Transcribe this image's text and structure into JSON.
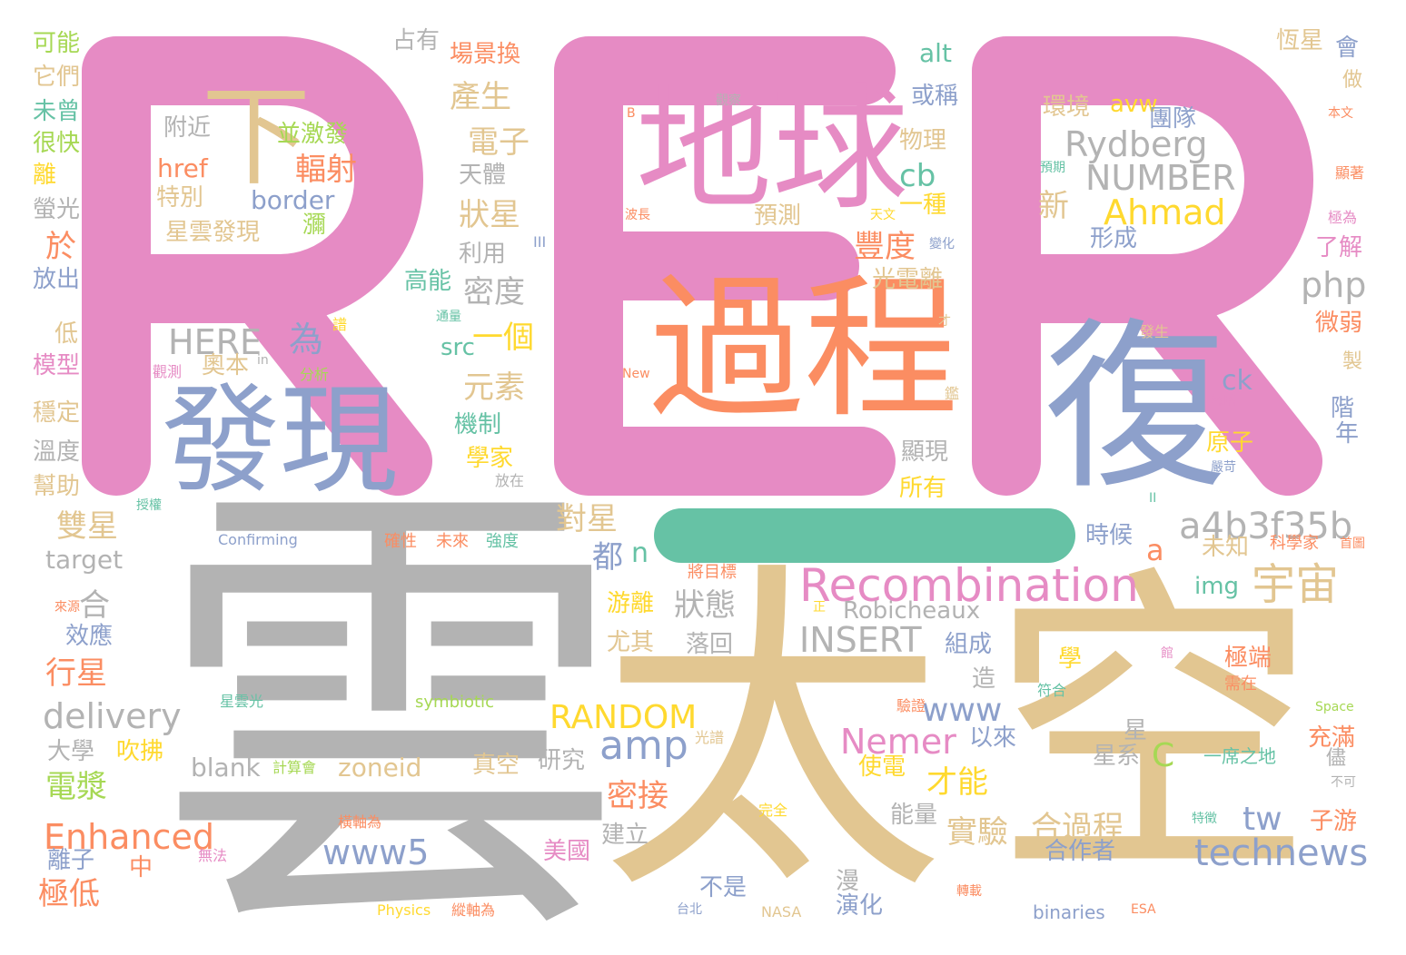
{
  "colors": {
    "pink": "#e68bc4",
    "tan": "#e2c691",
    "gray": "#b3b3b3",
    "orange": "#fb8d62",
    "blue": "#8da0cb",
    "green": "#66c2a5",
    "lime": "#a6d854",
    "yellow": "#ffd92f"
  },
  "big_glyphs": [
    {
      "text": "R",
      "color": "#e68bc4"
    },
    {
      "text": "E",
      "color": "#e68bc4"
    },
    {
      "text": "R",
      "color": "#e68bc4"
    },
    {
      "text": "—",
      "color": "#66c2a5"
    }
  ],
  "words": [
    {
      "t": "雲",
      "c": "#b3b3b3"
    },
    {
      "t": "太",
      "c": "#e2c691"
    },
    {
      "t": "空",
      "c": "#e2c691"
    },
    {
      "t": "過程",
      "c": "#fb8d62"
    },
    {
      "t": "地球",
      "c": "#e68bc4"
    },
    {
      "t": "復",
      "c": "#8da0cb"
    },
    {
      "t": "發現",
      "c": "#8da0cb"
    },
    {
      "t": "下",
      "c": "#e2c691"
    },
    {
      "t": "Recombination",
      "c": "#e68bc4"
    },
    {
      "t": "宇宙",
      "c": "#e2c691"
    },
    {
      "t": "a4b3f35b",
      "c": "#b3b3b3"
    },
    {
      "t": "Ahmad",
      "c": "#ffd92f"
    },
    {
      "t": "Rydberg",
      "c": "#b3b3b3"
    },
    {
      "t": "NUMBER",
      "c": "#b3b3b3"
    },
    {
      "t": "technews",
      "c": "#8da0cb"
    },
    {
      "t": "Enhanced",
      "c": "#fb8d62"
    },
    {
      "t": "delivery",
      "c": "#b3b3b3"
    },
    {
      "t": "RANDOM",
      "c": "#ffd92f"
    },
    {
      "t": "amp",
      "c": "#8da0cb"
    },
    {
      "t": "Nemer",
      "c": "#e68bc4"
    },
    {
      "t": "www5",
      "c": "#8da0cb"
    },
    {
      "t": "INSERT",
      "c": "#b3b3b3"
    },
    {
      "t": "Robicheaux",
      "c": "#b3b3b3"
    },
    {
      "t": "HERE",
      "c": "#b3b3b3"
    },
    {
      "t": "php",
      "c": "#b3b3b3"
    },
    {
      "t": "www",
      "c": "#8da0cb"
    },
    {
      "t": "zoneid",
      "c": "#e2c691"
    },
    {
      "t": "blank",
      "c": "#b3b3b3"
    },
    {
      "t": "target",
      "c": "#b3b3b3"
    },
    {
      "t": "border",
      "c": "#8da0cb"
    },
    {
      "t": "href",
      "c": "#fb8d62"
    },
    {
      "t": "alt",
      "c": "#66c2a5"
    },
    {
      "t": "cb",
      "c": "#66c2a5"
    },
    {
      "t": "ck",
      "c": "#8da0cb"
    },
    {
      "t": "src",
      "c": "#66c2a5"
    },
    {
      "t": "img",
      "c": "#66c2a5"
    },
    {
      "t": "avw",
      "c": "#ffd92f"
    },
    {
      "t": "tw",
      "c": "#8da0cb"
    },
    {
      "t": "C",
      "c": "#a6d854"
    },
    {
      "t": "a",
      "c": "#fb8d62"
    },
    {
      "t": "n",
      "c": "#66c2a5"
    },
    {
      "t": "產生",
      "c": "#e2c691"
    },
    {
      "t": "電子",
      "c": "#e2c691"
    },
    {
      "t": "輻射",
      "c": "#fb8d62"
    },
    {
      "t": "狀星",
      "c": "#e2c691"
    },
    {
      "t": "豐度",
      "c": "#fb8d62"
    },
    {
      "t": "密度",
      "c": "#b3b3b3"
    },
    {
      "t": "一個",
      "c": "#ffd92f"
    },
    {
      "t": "元素",
      "c": "#e2c691"
    },
    {
      "t": "為",
      "c": "#8da0cb"
    },
    {
      "t": "於",
      "c": "#fb8d62"
    },
    {
      "t": "雙星",
      "c": "#e2c691"
    },
    {
      "t": "合",
      "c": "#b3b3b3"
    },
    {
      "t": "行星",
      "c": "#fb8d62"
    },
    {
      "t": "電漿",
      "c": "#a6d854"
    },
    {
      "t": "極低",
      "c": "#fb8d62"
    },
    {
      "t": "對星",
      "c": "#e2c691"
    },
    {
      "t": "都",
      "c": "#8da0cb"
    },
    {
      "t": "狀態",
      "c": "#b3b3b3"
    },
    {
      "t": "密接",
      "c": "#fb8d62"
    },
    {
      "t": "才能",
      "c": "#ffd92f"
    },
    {
      "t": "實驗",
      "c": "#e2c691"
    },
    {
      "t": "合過程",
      "c": "#e2c691"
    },
    {
      "t": "新",
      "c": "#e2c691"
    },
    {
      "t": "可能",
      "c": "#a6d854"
    },
    {
      "t": "它們",
      "c": "#e2c691"
    },
    {
      "t": "未曾",
      "c": "#66c2a5"
    },
    {
      "t": "很快",
      "c": "#a6d854"
    },
    {
      "t": "離",
      "c": "#ffd92f"
    },
    {
      "t": "螢光",
      "c": "#b3b3b3"
    },
    {
      "t": "放出",
      "c": "#8da0cb"
    },
    {
      "t": "低",
      "c": "#e2c691"
    },
    {
      "t": "模型",
      "c": "#e68bc4"
    },
    {
      "t": "穩定",
      "c": "#e2c691"
    },
    {
      "t": "溫度",
      "c": "#b3b3b3"
    },
    {
      "t": "幫助",
      "c": "#e2c691"
    },
    {
      "t": "效應",
      "c": "#8da0cb"
    },
    {
      "t": "大學",
      "c": "#b3b3b3"
    },
    {
      "t": "吹拂",
      "c": "#ffd92f"
    },
    {
      "t": "離子",
      "c": "#8da0cb"
    },
    {
      "t": "中",
      "c": "#fb8d62"
    },
    {
      "t": "占有",
      "c": "#b3b3b3"
    },
    {
      "t": "場景換",
      "c": "#fb8d62"
    },
    {
      "t": "附近",
      "c": "#b3b3b3"
    },
    {
      "t": "並激發",
      "c": "#a6d854"
    },
    {
      "t": "天體",
      "c": "#b3b3b3"
    },
    {
      "t": "特別",
      "c": "#e2c691"
    },
    {
      "t": "星雲發現",
      "c": "#e2c691"
    },
    {
      "t": "瀰",
      "c": "#a6d854"
    },
    {
      "t": "利用",
      "c": "#b3b3b3"
    },
    {
      "t": "高能",
      "c": "#66c2a5"
    },
    {
      "t": "奧本",
      "c": "#e2c691"
    },
    {
      "t": "機制",
      "c": "#66c2a5"
    },
    {
      "t": "學家",
      "c": "#ffd92f"
    },
    {
      "t": "物理",
      "c": "#e2c691"
    },
    {
      "t": "或稱",
      "c": "#8da0cb"
    },
    {
      "t": "預測",
      "c": "#e2c691"
    },
    {
      "t": "一種",
      "c": "#ffd92f"
    },
    {
      "t": "光電離",
      "c": "#e2c691"
    },
    {
      "t": "顯現",
      "c": "#b3b3b3"
    },
    {
      "t": "所有",
      "c": "#ffd92f"
    },
    {
      "t": "環境",
      "c": "#e2c691"
    },
    {
      "t": "團隊",
      "c": "#8da0cb"
    },
    {
      "t": "形成",
      "c": "#8da0cb"
    },
    {
      "t": "原子",
      "c": "#ffd92f"
    },
    {
      "t": "時候",
      "c": "#8da0cb"
    },
    {
      "t": "未知",
      "c": "#e2c691"
    },
    {
      "t": "恆星",
      "c": "#e2c691"
    },
    {
      "t": "會",
      "c": "#8da0cb"
    },
    {
      "t": "做",
      "c": "#e2c691"
    },
    {
      "t": "了解",
      "c": "#e68bc4"
    },
    {
      "t": "微弱",
      "c": "#fb8d62"
    },
    {
      "t": "製",
      "c": "#e2c691"
    },
    {
      "t": "階",
      "c": "#8da0cb"
    },
    {
      "t": "年",
      "c": "#8da0cb"
    },
    {
      "t": "游離",
      "c": "#ffd92f"
    },
    {
      "t": "尤其",
      "c": "#e2c691"
    },
    {
      "t": "落回",
      "c": "#b3b3b3"
    },
    {
      "t": "組成",
      "c": "#8da0cb"
    },
    {
      "t": "造",
      "c": "#b3b3b3"
    },
    {
      "t": "學",
      "c": "#ffd92f"
    },
    {
      "t": "極端",
      "c": "#fb8d62"
    },
    {
      "t": "以來",
      "c": "#8da0cb"
    },
    {
      "t": "星",
      "c": "#b3b3b3"
    },
    {
      "t": "星系",
      "c": "#b3b3b3"
    },
    {
      "t": "充滿",
      "c": "#fb8d62"
    },
    {
      "t": "研究",
      "c": "#b3b3b3"
    },
    {
      "t": "真空",
      "c": "#e2c691"
    },
    {
      "t": "使電",
      "c": "#ffd92f"
    },
    {
      "t": "能量",
      "c": "#b3b3b3"
    },
    {
      "t": "建立",
      "c": "#b3b3b3"
    },
    {
      "t": "美國",
      "c": "#e68bc4"
    },
    {
      "t": "不是",
      "c": "#8da0cb"
    },
    {
      "t": "漫",
      "c": "#b3b3b3"
    },
    {
      "t": "演化",
      "c": "#8da0cb"
    },
    {
      "t": "合作者",
      "c": "#8da0cb"
    },
    {
      "t": "子游",
      "c": "#fb8d62"
    },
    {
      "t": "儘",
      "c": "#b3b3b3"
    },
    {
      "t": "一席之地",
      "c": "#66c2a5"
    },
    {
      "t": "binaries",
      "c": "#8da0cb"
    },
    {
      "t": "symbiotic",
      "c": "#a6d854"
    },
    {
      "t": "Confirming",
      "c": "#8da0cb"
    },
    {
      "t": "星雲光",
      "c": "#66c2a5"
    },
    {
      "t": "計算會",
      "c": "#a6d854"
    },
    {
      "t": "確性",
      "c": "#fb8d62"
    },
    {
      "t": "未來",
      "c": "#fb8d62"
    },
    {
      "t": "強度",
      "c": "#66c2a5"
    },
    {
      "t": "將目標",
      "c": "#fb8d62"
    },
    {
      "t": "科學家",
      "c": "#fb8d62"
    },
    {
      "t": "首圖",
      "c": "#fb8d62"
    },
    {
      "t": "符合",
      "c": "#66c2a5"
    },
    {
      "t": "需在",
      "c": "#fb8d62"
    },
    {
      "t": "驗證",
      "c": "#fb8d62"
    },
    {
      "t": "光譜",
      "c": "#e2c691"
    },
    {
      "t": "完全",
      "c": "#ffd92f"
    },
    {
      "t": "橫軸為",
      "c": "#fb8d62"
    },
    {
      "t": "無法",
      "c": "#e68bc4"
    },
    {
      "t": "Physics",
      "c": "#ffd92f"
    },
    {
      "t": "縱軸為",
      "c": "#fb8d62"
    },
    {
      "t": "台北",
      "c": "#8da0cb"
    },
    {
      "t": "NASA",
      "c": "#e2c691"
    },
    {
      "t": "轉載",
      "c": "#fb8d62"
    },
    {
      "t": "ESA",
      "c": "#fb8d62"
    },
    {
      "t": "特徵",
      "c": "#66c2a5"
    },
    {
      "t": "不可",
      "c": "#b3b3b3"
    },
    {
      "t": "Space",
      "c": "#a6d854"
    },
    {
      "t": "來源",
      "c": "#fb8d62"
    },
    {
      "t": "授權",
      "c": "#66c2a5"
    },
    {
      "t": "放在",
      "c": "#b3b3b3"
    },
    {
      "t": "觀測",
      "c": "#e68bc4"
    },
    {
      "t": "分析",
      "c": "#a6d854"
    },
    {
      "t": "譜",
      "c": "#ffd92f"
    },
    {
      "t": "通量",
      "c": "#66c2a5"
    },
    {
      "t": "in",
      "c": "#b3b3b3"
    },
    {
      "t": "New",
      "c": "#fb8d62"
    },
    {
      "t": "觀察",
      "c": "#b3b3b3"
    },
    {
      "t": "B",
      "c": "#fb8d62"
    },
    {
      "t": "波長",
      "c": "#fb8d62"
    },
    {
      "t": "III",
      "c": "#8da0cb"
    },
    {
      "t": "天文",
      "c": "#ffd92f"
    },
    {
      "t": "變化",
      "c": "#8da0cb"
    },
    {
      "t": "預期",
      "c": "#66c2a5"
    },
    {
      "t": "本文",
      "c": "#fb8d62"
    },
    {
      "t": "顯著",
      "c": "#fb8d62"
    },
    {
      "t": "極為",
      "c": "#e68bc4"
    },
    {
      "t": "發生",
      "c": "#e2c691"
    },
    {
      "t": "才",
      "c": "#e2c691"
    },
    {
      "t": "鑑",
      "c": "#e2c691"
    },
    {
      "t": "忽略",
      "c": "#e68bc4"
    },
    {
      "t": "嚴苛",
      "c": "#8da0cb"
    },
    {
      "t": "II",
      "c": "#66c2a5"
    },
    {
      "t": "館",
      "c": "#e68bc4"
    },
    {
      "t": "正",
      "c": "#ffd92f"
    }
  ]
}
